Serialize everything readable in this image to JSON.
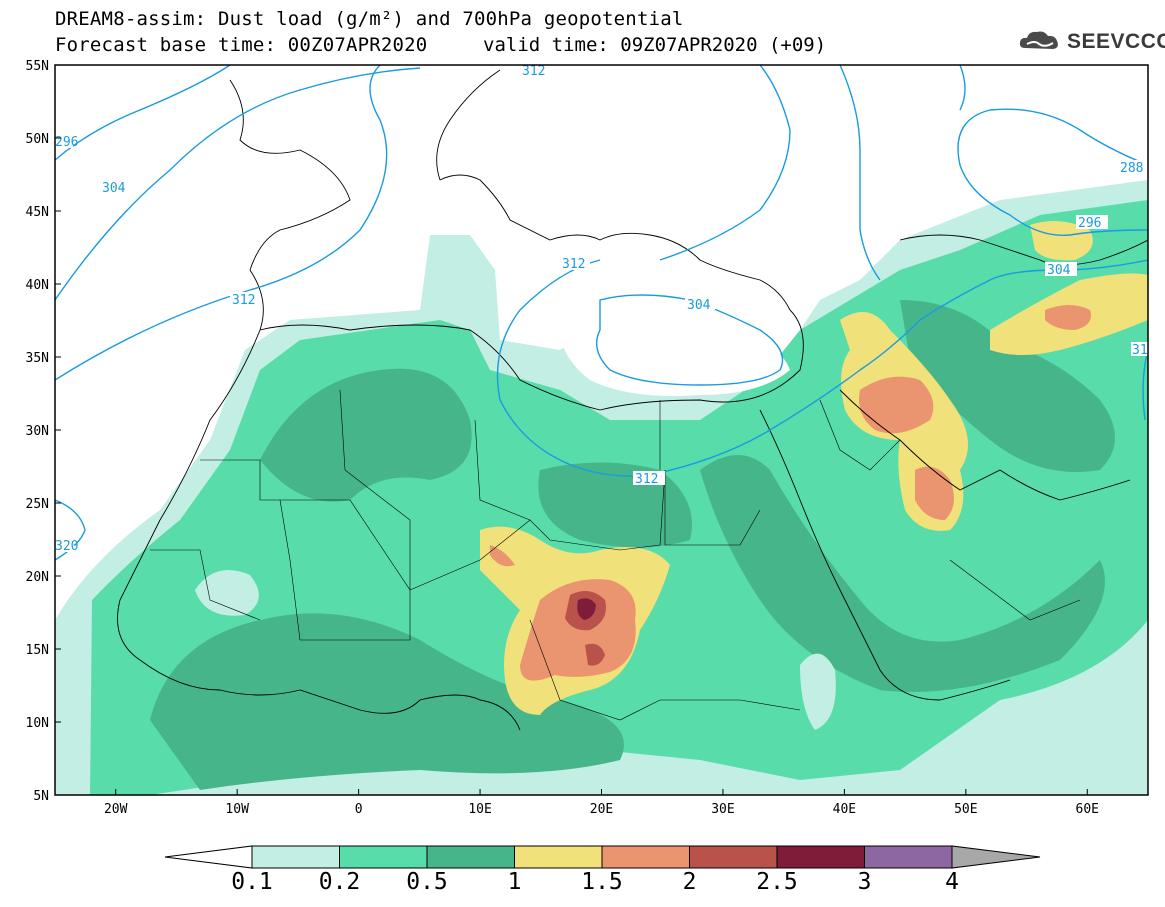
{
  "title": {
    "line1": "DREAM8-assim: Dust load (g/m²) and 700hPa geopotential",
    "line2": "Forecast base time: 00Z07APR2020",
    "valid": "valid time: 09Z07APR2020 (+09)"
  },
  "logo": {
    "text": "SEEVCCC",
    "icon": "cloud-icon"
  },
  "axes": {
    "lat_labels": [
      "55N",
      "50N",
      "45N",
      "40N",
      "35N",
      "30N",
      "25N",
      "20N",
      "15N",
      "10N",
      "5N"
    ],
    "lon_labels": [
      "20W",
      "10W",
      "0",
      "10E",
      "20E",
      "30E",
      "40E",
      "50E",
      "60E"
    ],
    "lon_range": [
      -25,
      65
    ],
    "lat_range": [
      5,
      55
    ]
  },
  "contour_labels": [
    "312",
    "296",
    "304",
    "312",
    "312",
    "304",
    "312",
    "320",
    "288",
    "296",
    "304",
    "31"
  ],
  "colorbar": {
    "levels": [
      "0.1",
      "0.2",
      "0.5",
      "1",
      "1.5",
      "2",
      "2.5",
      "3",
      "4"
    ],
    "colors": [
      "#c2eee4",
      "#58dcaa",
      "#46b68a",
      "#f0e17a",
      "#ea9470",
      "#b8524a",
      "#7e1c3a",
      "#8c67a2",
      "#a8a8a8"
    ]
  }
}
